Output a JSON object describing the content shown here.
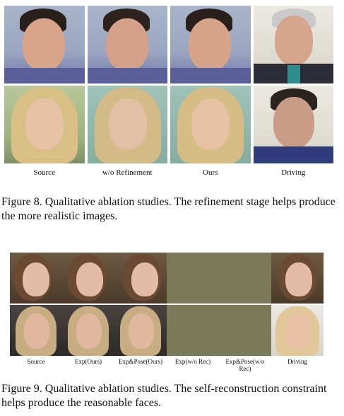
{
  "figure8": {
    "column_labels": [
      "Source",
      "w/o Refinement",
      "Ours",
      "Driving"
    ],
    "caption": "Figure 8. Qualitative ablation studies. The refinement stage helps produce the more realistic images."
  },
  "figure9": {
    "column_labels": [
      "Source",
      "Exp(Ours)",
      "Exp&Pose(Ours)",
      "Exp(w/o Rec)",
      "Exp&Pose(w/o Rec)",
      "Driving"
    ],
    "caption": "Figure 9. Qualitative ablation studies. The self-reconstruction constraint helps produce the reasonable faces."
  }
}
